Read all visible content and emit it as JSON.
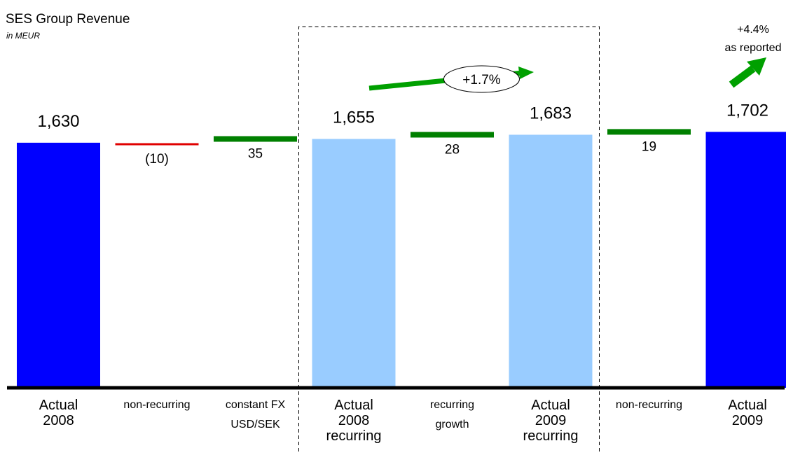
{
  "chart_data": {
    "type": "bar",
    "subtype": "waterfall",
    "title": "SES Group Revenue",
    "subtitle": "in MEUR",
    "categories": [
      [
        "Actual",
        "2008"
      ],
      [
        "non-recurring"
      ],
      [
        "constant FX",
        "USD/SEK"
      ],
      [
        "Actual",
        "2008",
        "recurring"
      ],
      [
        "recurring",
        "growth"
      ],
      [
        "Actual",
        "2009",
        "recurring"
      ],
      [
        "non-recurring"
      ],
      [
        "Actual",
        "2009"
      ]
    ],
    "values": [
      1630,
      -10,
      35,
      1655,
      28,
      1683,
      19,
      1702
    ],
    "value_labels": [
      "1,630",
      "(10)",
      "35",
      "1,655",
      "28",
      "1,683",
      "19",
      "1,702"
    ],
    "kinds": [
      "total",
      "delta",
      "delta",
      "subtotal",
      "delta",
      "subtotal",
      "delta",
      "total"
    ],
    "highlight_group": {
      "from": 3,
      "to": 5,
      "growth_label": "+1.7%"
    },
    "annotation": {
      "line1": "+4.4%",
      "line2": "as reported"
    },
    "colors": {
      "total": "#0000ff",
      "subtotal": "#99ccff",
      "increase": "#008000",
      "decrease": "#e00000",
      "arrow": "#00a000",
      "axis": "#000000"
    }
  }
}
